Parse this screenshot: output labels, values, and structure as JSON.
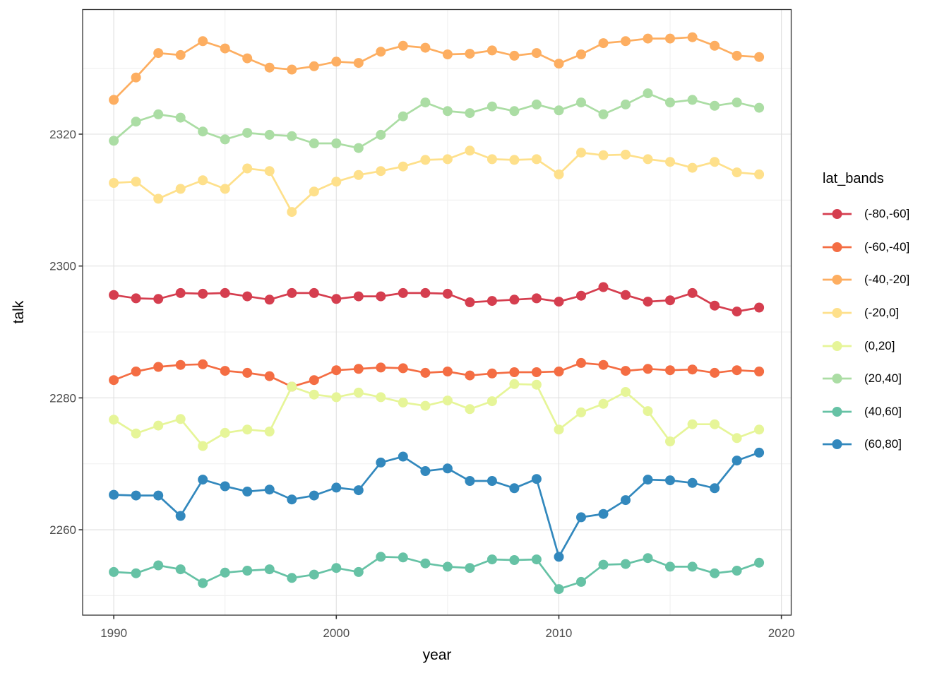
{
  "figure": {
    "background": "#FFFFFF",
    "panel_border_color": "#333333",
    "grid_major_color": "#E2E2E2",
    "grid_minor_color": "#F0F0F0",
    "tick_color": "#333333",
    "tick_label_color": "#4D4D4D"
  },
  "chart_data": {
    "type": "line",
    "title": "",
    "xlabel": "year",
    "ylabel": "talk",
    "legend_title": "lat_bands",
    "legend_position": "right",
    "grid": true,
    "xlim": [
      1988.6,
      2020.44
    ],
    "ylim": [
      2247.05,
      2338.9
    ],
    "x_ticks": [
      1990,
      2000,
      2010,
      2020
    ],
    "x_minor_ticks": [
      1995,
      2005,
      2015
    ],
    "y_ticks": [
      2260,
      2280,
      2300,
      2320
    ],
    "y_minor_ticks": [
      2250,
      2270,
      2290,
      2310,
      2330
    ],
    "x": [
      1990,
      1991,
      1992,
      1993,
      1994,
      1995,
      1996,
      1997,
      1998,
      1999,
      2000,
      2001,
      2002,
      2003,
      2004,
      2005,
      2006,
      2007,
      2008,
      2009,
      2010,
      2011,
      2012,
      2013,
      2014,
      2015,
      2016,
      2017,
      2018,
      2019
    ],
    "series": [
      {
        "name": "(-80,-60]",
        "color": "#D53E4F",
        "values": [
          2295.6,
          2295.1,
          2295.0,
          2295.9,
          2295.8,
          2295.9,
          2295.4,
          2294.9,
          2295.9,
          2295.9,
          2295.0,
          2295.4,
          2295.4,
          2295.9,
          2295.9,
          2295.8,
          2294.5,
          2294.7,
          2294.9,
          2295.1,
          2294.6,
          2295.5,
          2296.8,
          2295.6,
          2294.6,
          2294.8,
          2295.9,
          2294.0,
          2293.1,
          2293.7
        ]
      },
      {
        "name": "(-60,-40]",
        "color": "#F46D43",
        "values": [
          2282.7,
          2284.0,
          2284.7,
          2285.0,
          2285.1,
          2284.1,
          2283.8,
          2283.3,
          2281.7,
          2282.7,
          2284.2,
          2284.4,
          2284.6,
          2284.5,
          2283.8,
          2284.0,
          2283.4,
          2283.7,
          2283.9,
          2283.9,
          2284.0,
          2285.3,
          2285.0,
          2284.1,
          2284.4,
          2284.2,
          2284.3,
          2283.8,
          2284.2,
          2284.0
        ]
      },
      {
        "name": "(-40,-20]",
        "color": "#FDAE61",
        "values": [
          2325.2,
          2328.6,
          2332.3,
          2332.0,
          2334.1,
          2333.0,
          2331.5,
          2330.1,
          2329.8,
          2330.3,
          2331.0,
          2330.8,
          2332.5,
          2333.4,
          2333.1,
          2332.1,
          2332.2,
          2332.7,
          2331.9,
          2332.3,
          2330.7,
          2332.1,
          2333.8,
          2334.1,
          2334.5,
          2334.5,
          2334.7,
          2333.4,
          2331.9,
          2331.7
        ]
      },
      {
        "name": "(-20,0]",
        "color": "#FEE08B",
        "values": [
          2312.6,
          2312.8,
          2310.2,
          2311.7,
          2313.0,
          2311.7,
          2314.8,
          2314.4,
          2308.2,
          2311.3,
          2312.8,
          2313.8,
          2314.4,
          2315.1,
          2316.1,
          2316.2,
          2317.5,
          2316.2,
          2316.1,
          2316.2,
          2313.9,
          2317.2,
          2316.8,
          2316.9,
          2316.2,
          2315.8,
          2314.9,
          2315.8,
          2314.2,
          2313.9
        ]
      },
      {
        "name": "(0,20]",
        "color": "#E6F598",
        "values": [
          2276.7,
          2274.6,
          2275.8,
          2276.8,
          2272.7,
          2274.7,
          2275.2,
          2274.9,
          2281.7,
          2280.5,
          2280.1,
          2280.8,
          2280.1,
          2279.3,
          2278.8,
          2279.6,
          2278.3,
          2279.5,
          2282.1,
          2282.0,
          2275.2,
          2277.8,
          2279.1,
          2280.9,
          2278.0,
          2273.4,
          2276.0,
          2276.0,
          2273.9,
          2275.2
        ]
      },
      {
        "name": "(20,40]",
        "color": "#ABDDA4",
        "values": [
          2319.0,
          2321.9,
          2323.0,
          2322.5,
          2320.4,
          2319.2,
          2320.2,
          2319.9,
          2319.7,
          2318.6,
          2318.6,
          2317.9,
          2319.9,
          2322.7,
          2324.8,
          2323.5,
          2323.2,
          2324.2,
          2323.5,
          2324.5,
          2323.6,
          2324.8,
          2323.0,
          2324.5,
          2326.2,
          2324.8,
          2325.2,
          2324.3,
          2324.8,
          2324.0
        ]
      },
      {
        "name": "(40,60]",
        "color": "#66C2A5",
        "values": [
          2253.6,
          2253.4,
          2254.6,
          2254.0,
          2251.9,
          2253.5,
          2253.8,
          2254.0,
          2252.7,
          2253.2,
          2254.2,
          2253.6,
          2255.9,
          2255.8,
          2254.9,
          2254.4,
          2254.2,
          2255.5,
          2255.4,
          2255.5,
          2251.0,
          2252.1,
          2254.7,
          2254.8,
          2255.7,
          2254.4,
          2254.4,
          2253.4,
          2253.8,
          2255.0
        ]
      },
      {
        "name": "(60,80]",
        "color": "#3288BD",
        "values": [
          2265.3,
          2265.2,
          2265.2,
          2262.1,
          2267.6,
          2266.6,
          2265.8,
          2266.1,
          2264.6,
          2265.2,
          2266.4,
          2266.0,
          2270.2,
          2271.1,
          2268.9,
          2269.3,
          2267.4,
          2267.4,
          2266.3,
          2267.7,
          2255.9,
          2261.9,
          2262.4,
          2264.5,
          2267.6,
          2267.5,
          2267.1,
          2266.3,
          2270.5,
          2271.7
        ]
      }
    ]
  }
}
